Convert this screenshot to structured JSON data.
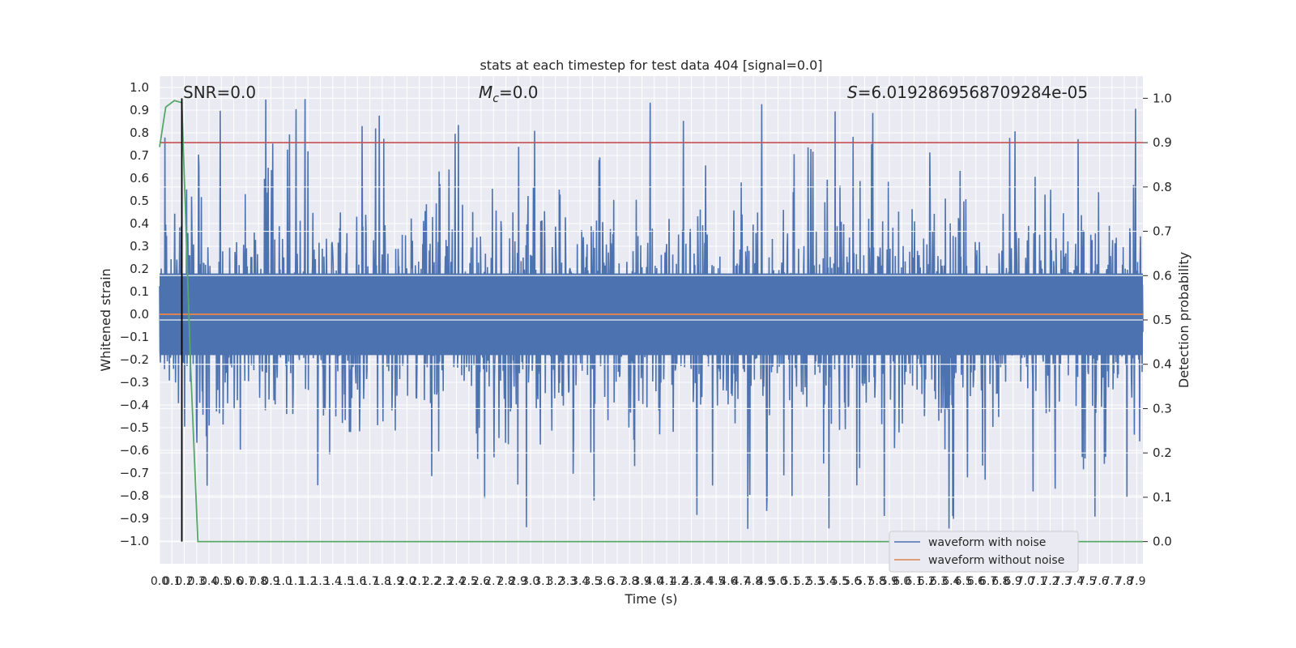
{
  "chart_data": {
    "type": "line",
    "title": "stats at each timestep for test data 404 [signal=0.0]",
    "xlabel": "Time (s)",
    "ylabel_left": "Whitened strain",
    "ylabel_right": "Detection probability",
    "xlim": [
      0.0,
      7.95
    ],
    "ylim_left": [
      -1.1,
      1.05
    ],
    "ylim_right": [
      -0.05,
      1.05
    ],
    "x_ticks": [
      "0.0",
      "0.1",
      "0.2",
      "0.3",
      "0.4",
      "0.5",
      "0.6",
      "0.7",
      "0.8",
      "0.9",
      "1.0",
      "1.1",
      "1.2",
      "1.3",
      "1.4",
      "1.5",
      "1.6",
      "1.7",
      "1.8",
      "1.9",
      "2.0",
      "2.1",
      "2.2",
      "2.3",
      "2.4",
      "2.5",
      "2.6",
      "2.7",
      "2.8",
      "2.9",
      "3.0",
      "3.1",
      "3.2",
      "3.3",
      "3.4",
      "3.5",
      "3.6",
      "3.7",
      "3.8",
      "3.9",
      "4.0",
      "4.1",
      "4.2",
      "4.3",
      "4.4",
      "4.5",
      "4.6",
      "4.7",
      "4.8",
      "4.9",
      "5.0",
      "5.1",
      "5.2",
      "5.3",
      "5.4",
      "5.5",
      "5.6",
      "5.7",
      "5.8",
      "5.9",
      "6.0",
      "6.1",
      "6.2",
      "6.3",
      "6.4",
      "6.5",
      "6.6",
      "6.7",
      "6.8",
      "6.9",
      "7.0",
      "7.1",
      "7.2",
      "7.3",
      "7.4",
      "7.5",
      "7.6",
      "7.7",
      "7.8",
      "7.9"
    ],
    "y_ticks_left": [
      "1.0",
      "0.9",
      "0.8",
      "0.7",
      "0.6",
      "0.5",
      "0.4",
      "0.3",
      "0.2",
      "0.1",
      "0.0",
      "−0.1",
      "−0.2",
      "−0.3",
      "−0.4",
      "−0.5",
      "−0.6",
      "−0.7",
      "−0.8",
      "−0.9",
      "−1.0"
    ],
    "y_ticks_right": [
      "1.0",
      "0.9",
      "0.8",
      "0.7",
      "0.6",
      "0.5",
      "0.4",
      "0.3",
      "0.2",
      "0.1",
      "0.0"
    ],
    "annotations": [
      "SNR=0.0",
      "=0.0",
      "=6.0192869568709284e-05"
    ],
    "mc_symbol": "M",
    "mc_subscript": "c",
    "s_symbol": "S",
    "threshold": 0.9,
    "marker_x": 0.18,
    "noise_amplitude": 0.95,
    "series": [
      {
        "name": "waveform with noise",
        "color": "#4c72b0",
        "kind": "noisy strain, roughly symmetric about 0"
      },
      {
        "name": "waveform without noise",
        "color": "#dd8452",
        "kind": "flat at 0.0"
      },
      {
        "name": "",
        "color": "#55a868",
        "axis": "right",
        "x": [
          0.0,
          0.05,
          0.12,
          0.18,
          0.25,
          0.31,
          0.35,
          7.95
        ],
        "y": [
          0.89,
          0.98,
          0.995,
          0.99,
          0.4,
          0.0,
          0.0,
          0.0
        ]
      }
    ],
    "threshold_color": "#c44e52",
    "marker_color": "#000000",
    "grid": true,
    "legend_position": "lower-right"
  }
}
